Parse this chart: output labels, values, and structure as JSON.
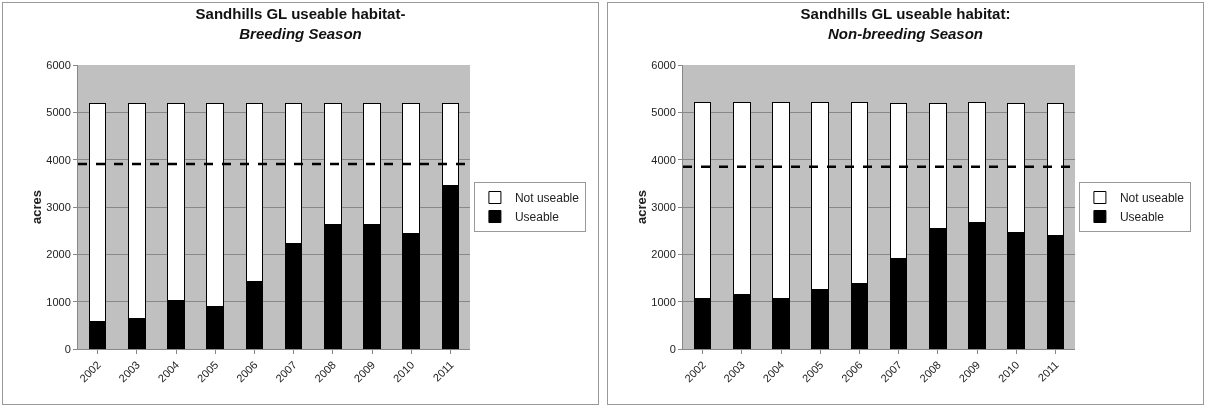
{
  "chart_data": [
    {
      "type": "bar",
      "title": "Sandhills GL useable habitat-",
      "subtitle": "Breeding Season",
      "ylabel": "acres",
      "categories": [
        "2002",
        "2003",
        "2004",
        "2005",
        "2006",
        "2007",
        "2008",
        "2009",
        "2010",
        "2011"
      ],
      "stacked": true,
      "series": [
        {
          "name": "Useable",
          "color": "#000000",
          "values": [
            580,
            640,
            1020,
            900,
            1420,
            2220,
            2640,
            2630,
            2440,
            3450
          ]
        },
        {
          "name": "Not useable",
          "color": "#ffffff",
          "values": [
            4600,
            4540,
            4160,
            4280,
            3760,
            2960,
            2540,
            2550,
            2740,
            1730
          ]
        }
      ],
      "ylim": [
        0,
        6000
      ],
      "yticks": [
        0,
        1000,
        2000,
        3000,
        4000,
        5000,
        6000
      ],
      "grid": "y",
      "legend": "right",
      "ref_lines": [
        {
          "axis": "y",
          "value": 3910,
          "color": "#000000",
          "line_style": "dashed"
        }
      ]
    },
    {
      "type": "bar",
      "title": "Sandhills GL useable habitat:",
      "subtitle": "Non-breeding Season",
      "ylabel": "acres",
      "categories": [
        "2002",
        "2003",
        "2004",
        "2005",
        "2006",
        "2007",
        "2008",
        "2009",
        "2010",
        "2011"
      ],
      "stacked": true,
      "series": [
        {
          "name": "Useable",
          "color": "#000000",
          "values": [
            1060,
            1160,
            1060,
            1260,
            1380,
            1920,
            2550,
            2680,
            2470,
            2390
          ]
        },
        {
          "name": "Not useable",
          "color": "#ffffff",
          "values": [
            4140,
            4040,
            4140,
            3940,
            3820,
            3260,
            2630,
            2520,
            2710,
            2790
          ]
        }
      ],
      "ylim": [
        0,
        6000
      ],
      "yticks": [
        0,
        1000,
        2000,
        3000,
        4000,
        5000,
        6000
      ],
      "grid": "y",
      "legend": "right",
      "ref_lines": [
        {
          "axis": "y",
          "value": 3850,
          "color": "#000000",
          "line_style": "dashed"
        }
      ]
    }
  ]
}
